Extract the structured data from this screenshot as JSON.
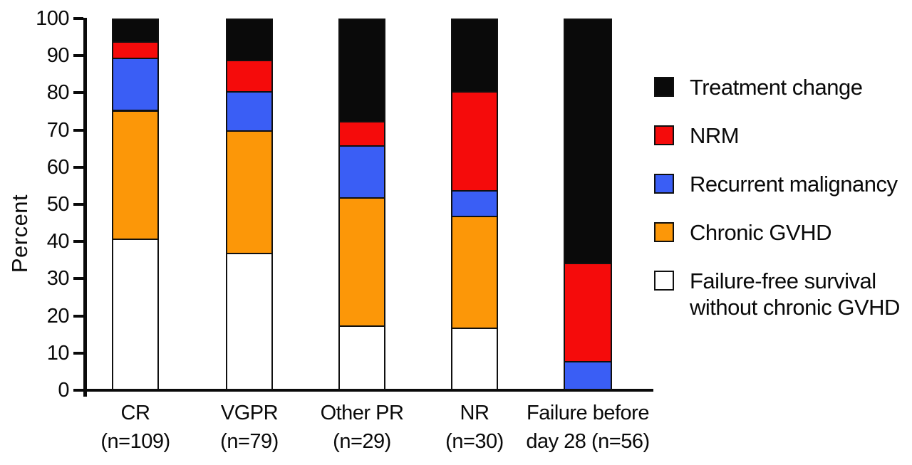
{
  "chart_data": {
    "type": "bar",
    "stacked": true,
    "title": "",
    "xlabel": "",
    "ylabel": "Percent",
    "ylim": [
      0,
      100
    ],
    "yticks": [
      0,
      10,
      20,
      30,
      40,
      50,
      60,
      70,
      80,
      90,
      100
    ],
    "grid": false,
    "legend_position": "right",
    "categories": [
      "CR\n(n=109)",
      "VGPR\n(n=79)",
      "Other PR\n(n=29)",
      "NR\n(n=30)",
      "Failure before\nday 28 (n=56)"
    ],
    "n_values": [
      109,
      79,
      29,
      30,
      56
    ],
    "series": [
      {
        "name": "Treatment change",
        "color": "#0a0a0a",
        "values": [
          6.5,
          11.5,
          28,
          20,
          66
        ]
      },
      {
        "name": "NRM",
        "color": "#f50b0b",
        "values": [
          4.5,
          8.5,
          6.5,
          26.5,
          26.5
        ]
      },
      {
        "name": "Recurrent malignancy",
        "color": "#3a5ef5",
        "values": [
          14,
          10.5,
          14,
          7,
          7.5
        ]
      },
      {
        "name": "Chronic GVHD",
        "color": "#fc9708",
        "values": [
          34.5,
          33,
          34.5,
          30,
          0
        ]
      },
      {
        "name": "Failure-free survival without chronic GVHD",
        "color": "#ffffff",
        "values": [
          40.5,
          36.5,
          17,
          16.5,
          0
        ]
      }
    ],
    "axis_color": "#0a0a0a",
    "segment_border_color": "#101010"
  }
}
